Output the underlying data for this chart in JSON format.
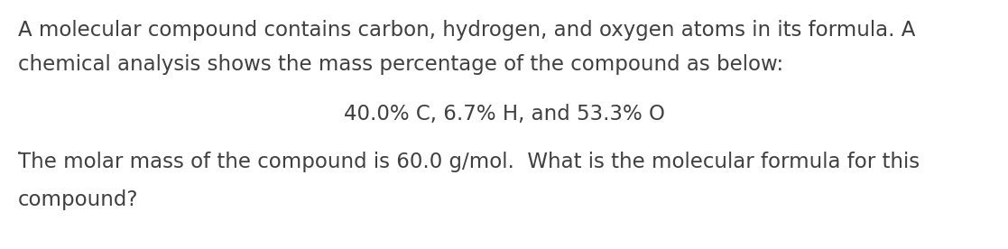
{
  "background_color": "#ffffff",
  "line1": "A molecular compound contains carbon, hydrogen, and oxygen atoms in its formula. A",
  "line2": "chemical analysis shows the mass percentage of the compound as below:",
  "centered_line": "40.0% C, 6.7% H, and 53.3% O",
  "line4_before_underline": "The molar mass of the compound is 60.0 g/mol.  What is ",
  "line4_underlined": "the molecular formula",
  "line4_after_underline": " for this",
  "line5": "compound?",
  "font_size": 16.5,
  "font_color": "#404040",
  "font_family": "DejaVu Sans",
  "fig_width": 11.17,
  "fig_height": 2.76,
  "dpi": 100
}
